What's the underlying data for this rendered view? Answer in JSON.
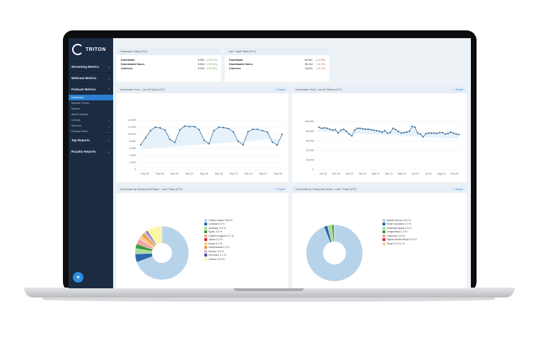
{
  "sidebar": {
    "logo": "TRITON",
    "items": [
      {
        "label": "Streaming Metrics"
      },
      {
        "label": "Webcast Metrics"
      },
      {
        "label": "Podcast Metrics"
      }
    ],
    "podcast_sub": [
      {
        "label": "Dashboard",
        "active": true
      },
      {
        "label": "Episode Trends"
      },
      {
        "label": "Explore"
      },
      {
        "label": "Saved Queries"
      },
      {
        "label": "Lineups"
      },
      {
        "label": "Services"
      },
      {
        "label": "Podcast Video"
      }
    ],
    "more": [
      {
        "label": "Tap Reports"
      },
      {
        "label": "Royalty Reports"
      }
    ],
    "help_icon": "lightbulb-icon"
  },
  "yesterday": {
    "title": "Yesterday's Stats (UTC)",
    "rows": [
      {
        "label": "Downloads:",
        "value": "9,901",
        "change": "(+42.1%)"
      },
      {
        "label": "Downloaded Hours:",
        "value": "5,014",
        "change": "(+49.4%)"
      },
      {
        "label": "Listeners:",
        "value": "6,240",
        "change": "(+42.5%)"
      }
    ]
  },
  "last7": {
    "title": "Last 7 days' Stats (UTC)",
    "rows": [
      {
        "label": "Downloads:",
        "value": "65,541",
        "change": "(-14.8%)"
      },
      {
        "label": "Downloaded Hours:",
        "value": "35,114",
        "change": "(-8.7%)"
      },
      {
        "label": "Listeners:",
        "value": "44,811",
        "change": "(-5.7%)"
      }
    ]
  },
  "export_label": "Export",
  "colors": {
    "sidebar": "#1b2b42",
    "accent": "#2f7fd6",
    "line": "#4a7fb0",
    "up": "#49a84a",
    "down": "#d9534f"
  },
  "chart_data": [
    {
      "type": "line",
      "title": "Downloads Trend - Last 30 Days (UTC)",
      "ylim": [
        0,
        14000
      ],
      "yticks": [
        "0",
        "2,000",
        "4,000",
        "6,000",
        "8,000",
        "10,000",
        "12,000",
        "14,000"
      ],
      "xticks": [
        "Sep 03",
        "Sep 06",
        "Sep 09",
        "Sep 12",
        "Sep 15",
        "Sep 18",
        "Sep 21",
        "Sep 24",
        "Sep 27",
        "Sep 30"
      ],
      "values": [
        7000,
        9000,
        11000,
        12000,
        11800,
        11200,
        8500,
        7700,
        11200,
        12300,
        12200,
        12200,
        11300,
        8300,
        7300,
        11000,
        12000,
        11900,
        11600,
        10700,
        8000,
        7000,
        10700,
        11400,
        11400,
        11000,
        10600,
        7800,
        6900,
        10000
      ]
    },
    {
      "type": "line",
      "title": "Downloads Trend - Last 52 Weeks (UTC)",
      "ylim": [
        0,
        100000
      ],
      "yticks": [
        "0",
        "20,000",
        "40,000",
        "60,000",
        "80,000",
        "100,000"
      ],
      "xticks": [
        "Oct 20",
        "Dec 20",
        "Jan 21",
        "Feb 21",
        "Mar 21",
        "Apr 21",
        "May 21",
        "Jun 21",
        "Jul 21",
        "Aug 21",
        "Sep 21"
      ],
      "values": [
        88000,
        86000,
        87000,
        86000,
        84000,
        82000,
        83000,
        76000,
        82000,
        84000,
        80000,
        74000,
        70000,
        82000,
        86000,
        86000,
        85000,
        84000,
        84000,
        83000,
        82000,
        81000,
        80000,
        78000,
        81000,
        76000,
        77000,
        86000,
        83000,
        79000,
        76000,
        77000,
        78000,
        80000,
        90000,
        88000,
        76000,
        74000,
        68000,
        75000,
        76000,
        76000,
        76000,
        75000,
        77000,
        77000,
        74000,
        75000,
        78000,
        76000,
        74000,
        73000
      ]
    },
    {
      "type": "pie",
      "title": "Downloads by Country and Region - Last 7 Days (UTC)",
      "slices": [
        {
          "label": "United States 78.8 %",
          "value": 78.8,
          "color": "#b7d3ea"
        },
        {
          "label": "Canada 5.9 %",
          "value": 5.9,
          "color": "#2c6aa8"
        },
        {
          "label": "Australia 3.6 %",
          "value": 3.6,
          "color": "#a7dc9a"
        },
        {
          "label": "Spain 3.3 %",
          "value": 3.3,
          "color": "#3e9a3e"
        },
        {
          "label": "United Kingdom 3.7 %",
          "value": 3.7,
          "color": "#f2a2a0"
        },
        {
          "label": "Japan 0.3 %",
          "value": 0.3,
          "color": "#d03030"
        },
        {
          "label": "Brazil 2.4 %",
          "value": 2.4,
          "color": "#f8c98a"
        },
        {
          "label": "Netherlands 2.3 %",
          "value": 2.3,
          "color": "#f19a3a"
        },
        {
          "label": "Mexico 1.8 %",
          "value": 1.8,
          "color": "#c8b8dc"
        },
        {
          "label": "Denmark 1.1 %",
          "value": 1.1,
          "color": "#5e4a9a"
        },
        {
          "label": "Others 10.5 %",
          "value": 10.5,
          "color": "#fbf5a8"
        }
      ]
    },
    {
      "type": "pie",
      "title": "Downloads by Family and Device - Last 7 Days (UTC)",
      "slices": [
        {
          "label": "Mobile Device 94.3 %",
          "value": 94.3,
          "color": "#b7d3ea"
        },
        {
          "label": "Smart Speaker 2.1 %",
          "value": 2.1,
          "color": "#2c6aa8"
        },
        {
          "label": "Desktop/Laptop 2.5 %",
          "value": 2.5,
          "color": "#a7dc9a"
        },
        {
          "label": "Unspecified 1.3 %",
          "value": 1.3,
          "color": "#3e9a3e"
        },
        {
          "label": "Unknown 0.0 %",
          "value": 0.0,
          "color": "#f2a2a0"
        },
        {
          "label": "Digital Media Player 0.0 %",
          "value": 0.0,
          "color": "#d03030"
        },
        {
          "label": "Smart TV 0.2 %",
          "value": 0.2,
          "color": "#f8c98a"
        }
      ]
    }
  ]
}
